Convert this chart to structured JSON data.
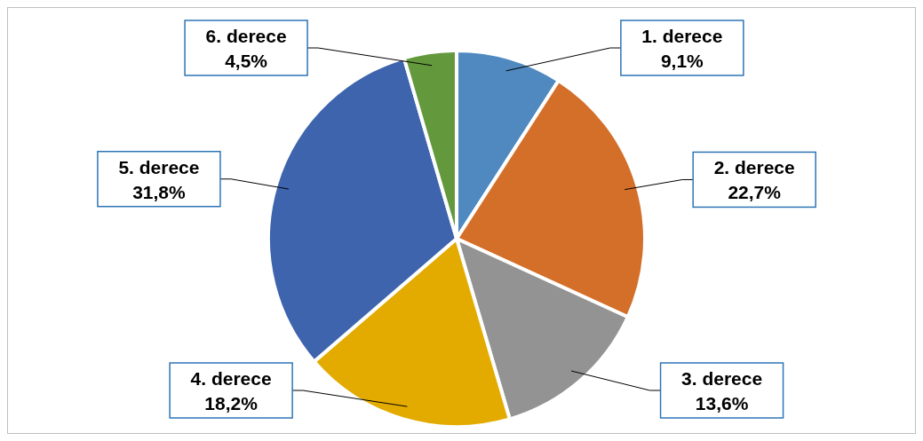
{
  "chart_data": {
    "type": "pie",
    "categories": [
      "1. derece",
      "2. derece",
      "3. derece",
      "4. derece",
      "5. derece",
      "6. derece"
    ],
    "values": [
      9.1,
      22.7,
      13.6,
      18.2,
      31.8,
      4.5
    ],
    "value_labels": [
      "9,1%",
      "22,7%",
      "13,6%",
      "18,2%",
      "31,8%",
      "4,5%"
    ],
    "colors": [
      "#4f89c0",
      "#d46f2a",
      "#939393",
      "#e3ab00",
      "#3e64ad",
      "#63993c"
    ],
    "legend": false
  }
}
